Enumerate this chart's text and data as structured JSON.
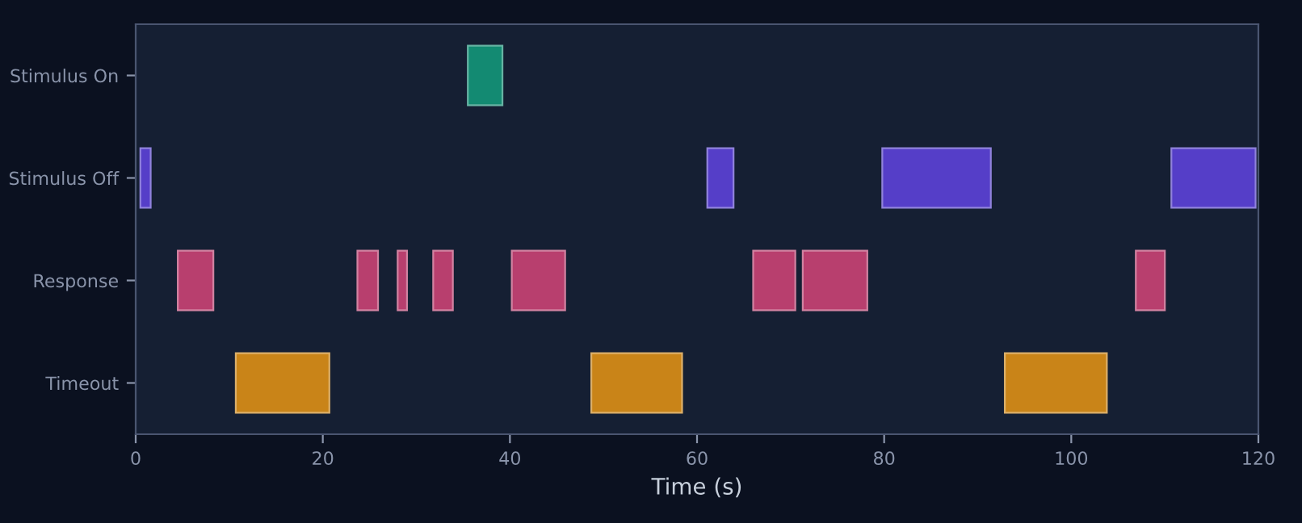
{
  "chart_data": {
    "type": "bar",
    "orientation": "horizontal",
    "xlabel": "Time (s)",
    "categories": [
      "Stimulus On",
      "Stimulus Off",
      "Response",
      "Timeout"
    ],
    "xlim": [
      0,
      120
    ],
    "xticks": [
      0,
      20,
      40,
      60,
      80,
      100,
      120
    ],
    "grid": false,
    "series": [
      {
        "colors": [
          "#138a72",
          "#553ec8",
          "#b83f6e",
          "#c98418"
        ],
        "base": [
          35.5,
          0.5,
          4.5,
          10.7
        ],
        "values": [
          3.7,
          1.1,
          3.8,
          10.0
        ]
      },
      {
        "colors": [
          "#138a72",
          "#553ec8",
          "#b83f6e",
          "#c98418"
        ],
        "base": [
          null,
          61.1,
          23.7,
          48.7
        ],
        "values": [
          null,
          2.8,
          2.2,
          9.7
        ]
      },
      {
        "colors": [
          "#138a72",
          "#553ec8",
          "#b83f6e",
          "#c98418"
        ],
        "base": [
          null,
          79.8,
          28.0,
          92.9
        ],
        "values": [
          null,
          11.6,
          1.0,
          10.9
        ]
      },
      {
        "colors": [
          "#138a72",
          "#553ec8",
          "#b83f6e",
          "#c98418"
        ],
        "base": [
          null,
          110.7,
          31.8,
          null
        ],
        "values": [
          null,
          9.0,
          2.1,
          null
        ]
      },
      {
        "colors": [
          "#138a72",
          "#553ec8",
          "#b83f6e",
          "#c98418"
        ],
        "base": [
          null,
          null,
          40.2,
          null
        ],
        "values": [
          null,
          null,
          5.7,
          null
        ]
      },
      {
        "colors": [
          "#138a72",
          "#553ec8",
          "#b83f6e",
          "#c98418"
        ],
        "base": [
          null,
          null,
          66.0,
          null
        ],
        "values": [
          null,
          null,
          4.5,
          null
        ]
      },
      {
        "colors": [
          "#138a72",
          "#553ec8",
          "#b83f6e",
          "#c98418"
        ],
        "base": [
          null,
          null,
          71.3,
          null
        ],
        "values": [
          null,
          null,
          6.9,
          null
        ]
      },
      {
        "colors": [
          "#138a72",
          "#553ec8",
          "#b83f6e",
          "#c98418"
        ],
        "base": [
          null,
          null,
          106.9,
          null
        ],
        "values": [
          null,
          null,
          3.1,
          null
        ]
      }
    ]
  }
}
